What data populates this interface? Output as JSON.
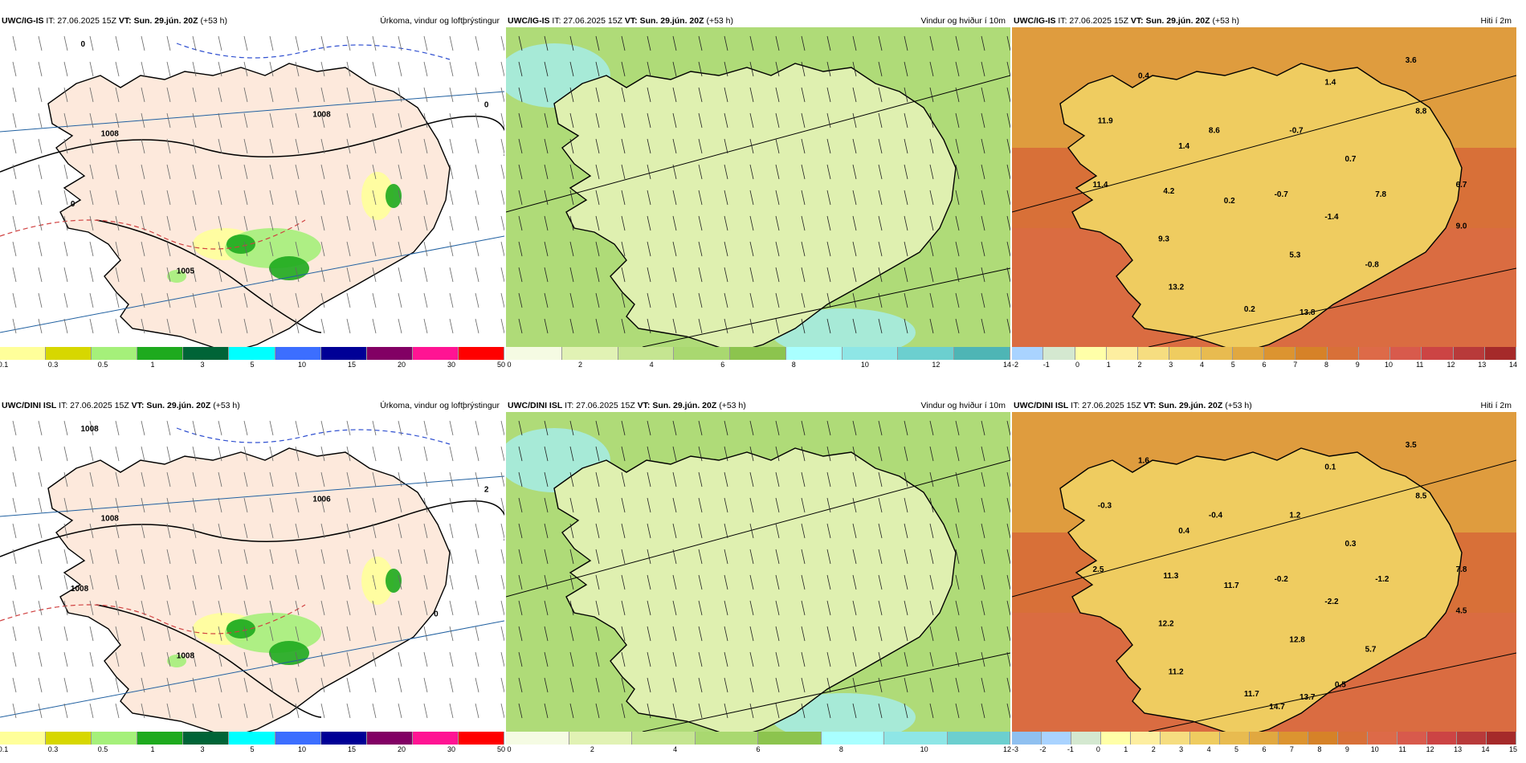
{
  "panels": [
    {
      "model": "UWC/IG-IS",
      "it": "IT: 27.06.2025 15Z",
      "vt_label": "VT:",
      "vt": "Sun. 29.jún. 20Z",
      "lead": "(+53 h)",
      "title": "Úrkoma, vindur og loftþrýstingur",
      "colorbar_colors": [
        "#ffff9a",
        "#d7d700",
        "#a5f07a",
        "#1eaa1e",
        "#006437",
        "#00ffff",
        "#3c6eff",
        "#000096",
        "#820064",
        "#ff1493",
        "#ff0000"
      ],
      "colorbar_ticks": [
        "0.1",
        "0.3",
        "0.5",
        "1",
        "3",
        "5",
        "10",
        "15",
        "20",
        "30",
        "50"
      ],
      "labels": [
        "1005",
        "1008",
        "1008",
        "0",
        "0",
        "0"
      ]
    },
    {
      "model": "UWC/IG-IS",
      "it": "IT: 27.06.2025 15Z",
      "vt_label": "VT:",
      "vt": "Sun. 29.jún. 20Z",
      "lead": "(+53 h)",
      "title": "Vindur og hviður í 10m",
      "colorbar_colors": [
        "#f5fbe3",
        "#e1f2b4",
        "#c5e591",
        "#a9d870",
        "#8cc44e",
        "#a9ffff",
        "#8ee6e6",
        "#6ccfcf",
        "#4eb5b5"
      ],
      "colorbar_ticks": [
        "0",
        "2",
        "4",
        "6",
        "8",
        "10",
        "12",
        "14"
      ],
      "labels": []
    },
    {
      "model": "UWC/IG-IS",
      "it": "IT: 27.06.2025 15Z",
      "vt_label": "VT:",
      "vt": "Sun. 29.jún. 20Z",
      "lead": "(+53 h)",
      "title": "Hiti í 2m",
      "colorbar_colors": [
        "#a9d3ff",
        "#d4e8d0",
        "#ffffa8",
        "#fdeea0",
        "#f6dd80",
        "#efcc60",
        "#e8bb50",
        "#e1a840",
        "#dc9430",
        "#d68228",
        "#d87038",
        "#dd6a48",
        "#d85a4c",
        "#cc4444",
        "#b83a3a",
        "#a52a2a"
      ],
      "colorbar_ticks": [
        "-2",
        "-1",
        "0",
        "1",
        "2",
        "3",
        "4",
        "5",
        "6",
        "7",
        "8",
        "9",
        "10",
        "11",
        "12",
        "13",
        "14"
      ],
      "labels": [
        "0.4",
        "3.6",
        "1.4",
        "11.9",
        "8.8",
        "8.6",
        "-0.7",
        "1.4",
        "0.7",
        "11.4",
        "4.2",
        "0.2",
        "-0.7",
        "7.8",
        "6.7",
        "-1.4",
        "9.0",
        "9.3",
        "5.3",
        "-0.8",
        "13.2",
        "0.2",
        "13.8"
      ]
    },
    {
      "model": "UWC/DINI ISL",
      "it": "IT: 27.06.2025 15Z",
      "vt_label": "VT:",
      "vt": "Sun. 29.jún. 20Z",
      "lead": "(+53 h)",
      "title": "Úrkoma, vindur og loftþrýstingur",
      "colorbar_colors": [
        "#ffff9a",
        "#d7d700",
        "#a5f07a",
        "#1eaa1e",
        "#006437",
        "#00ffff",
        "#3c6eff",
        "#000096",
        "#820064",
        "#ff1493",
        "#ff0000"
      ],
      "colorbar_ticks": [
        "0.1",
        "0.3",
        "0.5",
        "1",
        "3",
        "5",
        "10",
        "15",
        "20",
        "30",
        "50"
      ],
      "labels": [
        "1008",
        "1008",
        "1006",
        "1008",
        "1008",
        "2",
        "0"
      ]
    },
    {
      "model": "UWC/DINI ISL",
      "it": "IT: 27.06.2025 15Z",
      "vt_label": "VT:",
      "vt": "Sun. 29.jún. 20Z",
      "lead": "(+53 h)",
      "title": "Vindur og hviður í 10m",
      "colorbar_colors": [
        "#f5fbe3",
        "#e1f2b4",
        "#c5e591",
        "#a9d870",
        "#8cc44e",
        "#a9ffff",
        "#8ee6e6",
        "#6ccfcf"
      ],
      "colorbar_ticks": [
        "0",
        "2",
        "4",
        "6",
        "8",
        "10",
        "12"
      ],
      "labels": []
    },
    {
      "model": "UWC/DINI ISL",
      "it": "IT: 27.06.2025 15Z",
      "vt_label": "VT:",
      "vt": "Sun. 29.jún. 20Z",
      "lead": "(+53 h)",
      "title": "Hiti í 2m",
      "colorbar_colors": [
        "#8fc0f0",
        "#a9d3ff",
        "#d4e8d0",
        "#ffffa8",
        "#fdeea0",
        "#f6dd80",
        "#efcc60",
        "#e8bb50",
        "#e1a840",
        "#dc9430",
        "#d68228",
        "#d87038",
        "#dd6a48",
        "#d85a4c",
        "#cc4444",
        "#b83a3a",
        "#a52a2a"
      ],
      "colorbar_ticks": [
        "-3",
        "-2",
        "-1",
        "0",
        "1",
        "2",
        "3",
        "4",
        "5",
        "6",
        "7",
        "8",
        "9",
        "10",
        "11",
        "12",
        "13",
        "14",
        "15"
      ],
      "labels": [
        "1.6",
        "3.5",
        "0.1",
        "-0.3",
        "8.5",
        "-0.4",
        "1.2",
        "0.4",
        "0.3",
        "2.5",
        "11.3",
        "11.7",
        "-0.2",
        "-1.2",
        "7.8",
        "-2.2",
        "4.5",
        "12.2",
        "12.8",
        "5.7",
        "11.2",
        "11.7",
        "13.7",
        "0.5",
        "14.7"
      ]
    }
  ]
}
